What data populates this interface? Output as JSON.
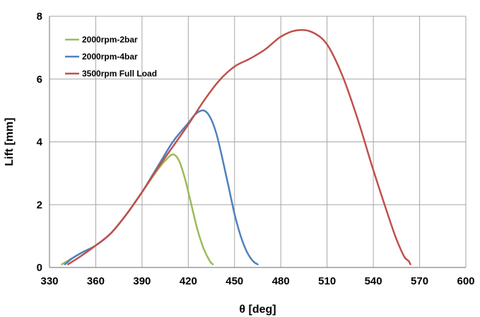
{
  "chart_data": {
    "type": "line",
    "title": "",
    "xlabel": "θ [deg]",
    "ylabel": "Lift [mm]",
    "xlim": [
      330,
      600
    ],
    "ylim": [
      0,
      8
    ],
    "xticks": [
      "330",
      "360",
      "390",
      "420",
      "450",
      "480",
      "510",
      "540",
      "570",
      "600"
    ],
    "yticks": [
      "0",
      "2",
      "4",
      "6",
      "8"
    ],
    "grid": true,
    "legend_position": "top-left",
    "series": [
      {
        "name": "2000rpm-2bar",
        "color": "#9bbb59",
        "x": [
          338,
          345,
          352,
          360,
          370,
          380,
          390,
          400,
          405,
          410,
          414,
          418,
          422,
          426,
          430,
          434,
          436
        ],
        "y": [
          0.1,
          0.3,
          0.5,
          0.7,
          1.1,
          1.7,
          2.4,
          3.1,
          3.4,
          3.6,
          3.4,
          2.8,
          2.0,
          1.2,
          0.6,
          0.2,
          0.1
        ]
      },
      {
        "name": "2000rpm-4bar",
        "color": "#4f81bd",
        "x": [
          340,
          345,
          352,
          360,
          370,
          380,
          390,
          400,
          410,
          420,
          425,
          430,
          434,
          438,
          442,
          446,
          450,
          454,
          458,
          462,
          465
        ],
        "y": [
          0.1,
          0.3,
          0.5,
          0.7,
          1.1,
          1.7,
          2.4,
          3.2,
          4.0,
          4.6,
          4.9,
          5.0,
          4.8,
          4.3,
          3.5,
          2.6,
          1.7,
          1.0,
          0.5,
          0.2,
          0.1
        ]
      },
      {
        "name": "3500rpm Full Load",
        "color": "#c0504d",
        "x": [
          342,
          350,
          360,
          370,
          380,
          390,
          400,
          410,
          420,
          430,
          440,
          450,
          460,
          470,
          480,
          490,
          500,
          510,
          520,
          530,
          540,
          550,
          555,
          560,
          563,
          564
        ],
        "y": [
          0.1,
          0.35,
          0.7,
          1.1,
          1.7,
          2.4,
          3.15,
          3.85,
          4.55,
          5.3,
          5.95,
          6.4,
          6.65,
          6.95,
          7.35,
          7.55,
          7.5,
          7.1,
          6.1,
          4.7,
          3.1,
          1.6,
          0.9,
          0.35,
          0.2,
          0.1
        ]
      }
    ]
  }
}
